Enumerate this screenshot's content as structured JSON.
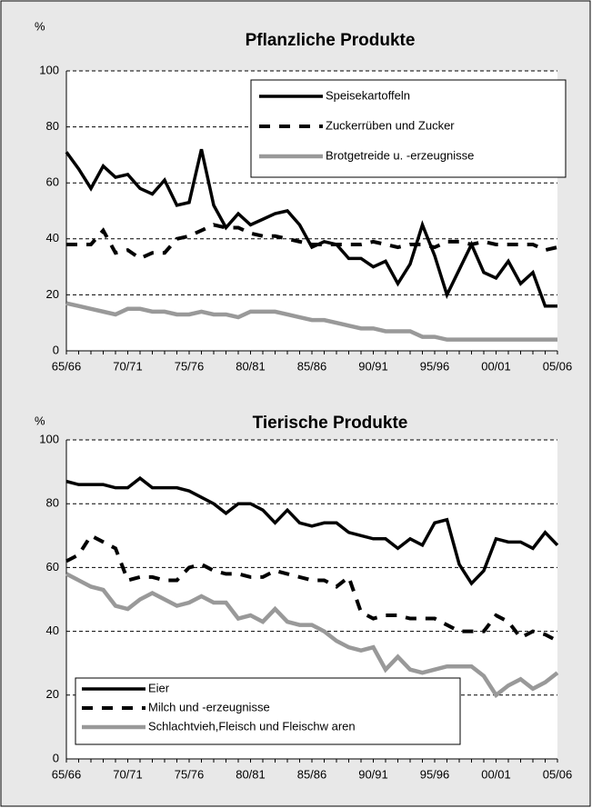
{
  "chart_data": [
    {
      "type": "line",
      "title": "Pflanzliche Produkte",
      "y_label": "%",
      "categories": [
        "65/66",
        null,
        null,
        null,
        null,
        "70/71",
        null,
        null,
        null,
        null,
        "75/76",
        null,
        null,
        null,
        null,
        "80/81",
        null,
        null,
        null,
        null,
        "85/86",
        null,
        null,
        null,
        null,
        "90/91",
        null,
        null,
        null,
        null,
        "95/96",
        null,
        null,
        null,
        null,
        "00/01",
        null,
        null,
        null,
        null,
        "05/06"
      ],
      "series": [
        {
          "name": "Speisekartoffeln",
          "color": "#000000",
          "dash": "solid",
          "values": [
            71,
            65,
            58,
            66,
            62,
            63,
            58,
            56,
            61,
            52,
            53,
            72,
            52,
            44,
            49,
            45,
            47,
            49,
            50,
            45,
            37,
            39,
            38,
            33,
            33,
            30,
            32,
            24,
            31,
            45,
            34,
            20,
            29,
            38,
            28,
            26,
            32,
            24,
            28,
            16,
            16
          ]
        },
        {
          "name": "Zuckerrüben und Zucker",
          "color": "#000000",
          "dash": "dashed",
          "values": [
            38,
            38,
            38,
            43,
            35,
            36,
            33,
            35,
            35,
            40,
            41,
            43,
            45,
            44,
            44,
            42,
            41,
            41,
            40,
            39,
            38,
            38,
            38,
            38,
            38,
            39,
            38,
            37,
            38,
            38,
            37,
            39,
            39,
            38,
            39,
            38,
            38,
            38,
            38,
            36,
            37
          ]
        },
        {
          "name": "Brotgetreide u. -erzeugnisse",
          "color": "#999999",
          "dash": "solid",
          "values": [
            17,
            16,
            15,
            14,
            13,
            15,
            15,
            14,
            14,
            13,
            13,
            14,
            13,
            13,
            12,
            14,
            14,
            14,
            13,
            12,
            11,
            11,
            10,
            9,
            8,
            8,
            7,
            7,
            7,
            5,
            5,
            4,
            4,
            4,
            4,
            4,
            4,
            4,
            4,
            4,
            4
          ]
        }
      ],
      "ylim": [
        0,
        100
      ],
      "yticks": [
        0,
        20,
        40,
        60,
        80,
        100
      ],
      "grid": true,
      "legend": "upper right"
    },
    {
      "type": "line",
      "title": "Tierische Produkte",
      "y_label": "%",
      "categories": [
        "65/66",
        null,
        null,
        null,
        null,
        "70/71",
        null,
        null,
        null,
        null,
        "75/76",
        null,
        null,
        null,
        null,
        "80/81",
        null,
        null,
        null,
        null,
        "85/86",
        null,
        null,
        null,
        null,
        "90/91",
        null,
        null,
        null,
        null,
        "95/96",
        null,
        null,
        null,
        null,
        "00/01",
        null,
        null,
        null,
        null,
        "05/06"
      ],
      "series": [
        {
          "name": "Eier",
          "color": "#000000",
          "dash": "solid",
          "values": [
            87,
            86,
            86,
            86,
            85,
            85,
            88,
            85,
            85,
            85,
            84,
            82,
            80,
            77,
            80,
            80,
            78,
            74,
            78,
            74,
            73,
            74,
            74,
            71,
            70,
            69,
            69,
            66,
            69,
            67,
            74,
            75,
            61,
            55,
            59,
            69,
            68,
            68,
            66,
            71,
            67
          ]
        },
        {
          "name": "Milch und -erzeugnisse",
          "color": "#000000",
          "dash": "dashed",
          "values": [
            62,
            64,
            70,
            68,
            66,
            56,
            57,
            57,
            56,
            56,
            60,
            61,
            59,
            58,
            58,
            57,
            57,
            59,
            58,
            57,
            56,
            56,
            54,
            57,
            46,
            44,
            45,
            45,
            44,
            44,
            44,
            42,
            40,
            40,
            40,
            45,
            43,
            38,
            40,
            39,
            37
          ]
        },
        {
          "name": "Schlachtvieh,Fleisch und Fleischw aren",
          "color": "#999999",
          "dash": "solid",
          "values": [
            58,
            56,
            54,
            53,
            48,
            47,
            50,
            52,
            50,
            48,
            49,
            51,
            49,
            49,
            44,
            45,
            43,
            47,
            43,
            42,
            42,
            40,
            37,
            35,
            34,
            35,
            28,
            32,
            28,
            27,
            28,
            29,
            29,
            29,
            26,
            20,
            23,
            25,
            22,
            24,
            27
          ]
        }
      ],
      "ylim": [
        0,
        100
      ],
      "yticks": [
        0,
        20,
        40,
        60,
        80,
        100
      ],
      "grid": true,
      "legend": "lower left"
    }
  ]
}
